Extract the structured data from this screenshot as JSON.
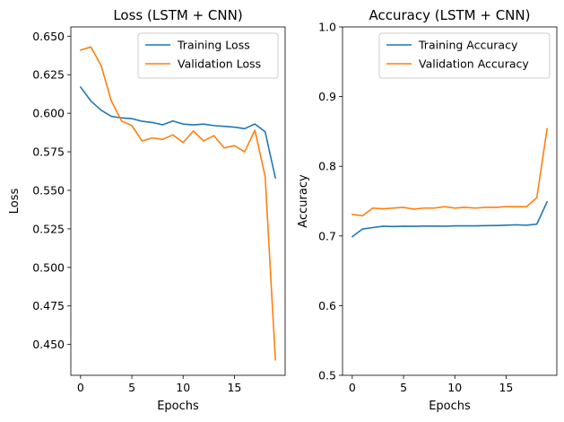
{
  "chart_data": [
    {
      "type": "line",
      "title": "Loss (LSTM + CNN)",
      "xlabel": "Epochs",
      "ylabel": "Loss",
      "x": [
        0,
        1,
        2,
        3,
        4,
        5,
        6,
        7,
        8,
        9,
        10,
        11,
        12,
        13,
        14,
        15,
        16,
        17,
        18,
        19
      ],
      "xlim": [
        -0.95,
        19.95
      ],
      "ylim": [
        0.43,
        0.656
      ],
      "xticks": [
        0,
        5,
        10,
        15
      ],
      "xtick_labels": [
        "0",
        "5",
        "10",
        "15"
      ],
      "yticks": [
        0.45,
        0.475,
        0.5,
        0.525,
        0.55,
        0.575,
        0.6,
        0.625,
        0.65
      ],
      "ytick_labels": [
        "0.450",
        "0.475",
        "0.500",
        "0.525",
        "0.550",
        "0.575",
        "0.600",
        "0.625",
        "0.650"
      ],
      "legend_position": "top-right",
      "grid": false,
      "series": [
        {
          "name": "Training Loss",
          "color": "#1f77b4",
          "values": [
            0.617,
            0.608,
            0.602,
            0.598,
            0.597,
            0.5965,
            0.5948,
            0.594,
            0.5925,
            0.595,
            0.593,
            0.5925,
            0.593,
            0.592,
            0.5915,
            0.591,
            0.59,
            0.593,
            0.588,
            0.558
          ]
        },
        {
          "name": "Validation Loss",
          "color": "#ff7f0e",
          "values": [
            0.641,
            0.643,
            0.631,
            0.608,
            0.595,
            0.592,
            0.582,
            0.584,
            0.583,
            0.586,
            0.581,
            0.5885,
            0.582,
            0.5855,
            0.5775,
            0.579,
            0.575,
            0.589,
            0.559,
            0.44
          ]
        }
      ]
    },
    {
      "type": "line",
      "title": "Accuracy (LSTM + CNN)",
      "xlabel": "Epochs",
      "ylabel": "Accuracy",
      "x": [
        0,
        1,
        2,
        3,
        4,
        5,
        6,
        7,
        8,
        9,
        10,
        11,
        12,
        13,
        14,
        15,
        16,
        17,
        18,
        19
      ],
      "xlim": [
        -0.95,
        19.95
      ],
      "ylim": [
        0.5,
        1.0
      ],
      "xticks": [
        0,
        5,
        10,
        15
      ],
      "xtick_labels": [
        "0",
        "5",
        "10",
        "15"
      ],
      "yticks": [
        0.5,
        0.6,
        0.7,
        0.8,
        0.9,
        1.0
      ],
      "ytick_labels": [
        "0.5",
        "0.6",
        "0.7",
        "0.8",
        "0.9",
        "1.0"
      ],
      "legend_position": "top-right",
      "grid": false,
      "series": [
        {
          "name": "Training Accuracy",
          "color": "#1f77b4",
          "values": [
            0.699,
            0.71,
            0.712,
            0.714,
            0.7135,
            0.714,
            0.7138,
            0.7142,
            0.7142,
            0.714,
            0.7145,
            0.7145,
            0.7145,
            0.7148,
            0.715,
            0.7155,
            0.716,
            0.7155,
            0.717,
            0.749
          ]
        },
        {
          "name": "Validation Accuracy",
          "color": "#ff7f0e",
          "values": [
            0.731,
            0.729,
            0.74,
            0.739,
            0.74,
            0.741,
            0.7385,
            0.74,
            0.74,
            0.742,
            0.74,
            0.741,
            0.74,
            0.741,
            0.741,
            0.742,
            0.742,
            0.742,
            0.755,
            0.854
          ]
        }
      ]
    }
  ]
}
